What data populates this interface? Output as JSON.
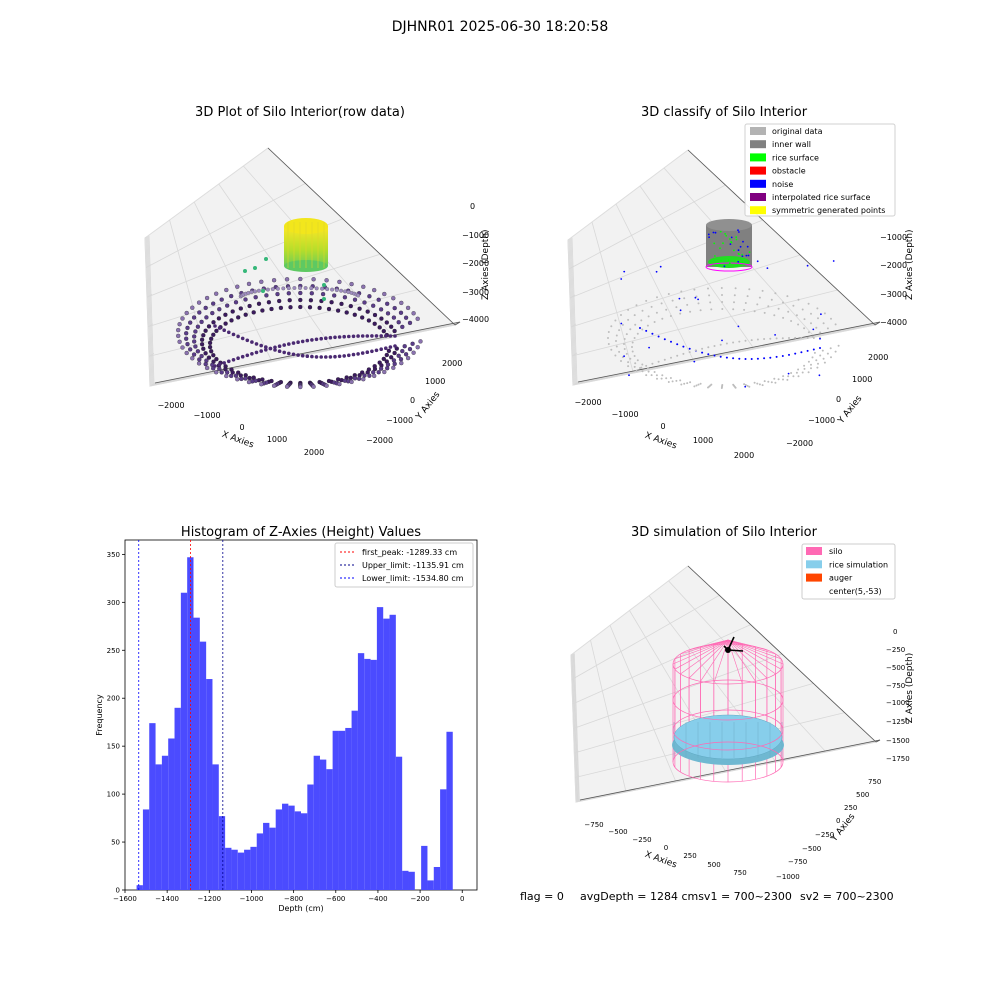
{
  "figure": {
    "suptitle": "DJHNR01 2025-06-30 18:20:58",
    "footer": {
      "flag": "flag = 0",
      "avg": "avgDepth = 1284 cmsv1 = 700~2300",
      "sv2": "sv2 = 700~2300"
    }
  },
  "chart_data": [
    {
      "type": "scatter3d",
      "title": "3D Plot of Silo Interior(row data)",
      "xlabel": "X Axies",
      "ylabel": "Y Axies",
      "zlabel": "Z Axies (Depth)",
      "x_ticks": [
        "−2000",
        "−1000",
        "0",
        "1000",
        "2000"
      ],
      "y_ticks": [
        "2000",
        "1000",
        "0",
        "−1000",
        "−2000"
      ],
      "z_ticks": [
        "0",
        "−1000",
        "−2000",
        "−3000",
        "−4000"
      ],
      "colormap": "viridis",
      "description_points": [
        {
          "group": "rice surface cylinder",
          "x_range": [
            -600,
            600
          ],
          "z_range": [
            -1800,
            -1000
          ],
          "color": "#b5de2b"
        },
        {
          "group": "scattered floor arcs",
          "x_range": [
            -2000,
            2000
          ],
          "z_range": [
            -4200,
            -3800
          ],
          "color": "#482878"
        }
      ]
    },
    {
      "type": "scatter3d",
      "title": "3D classify of Silo Interior",
      "xlabel": "X Axies",
      "ylabel": "Y Axies",
      "zlabel": "Z Axies (Depth)",
      "x_ticks": [
        "−2000",
        "−1000",
        "0",
        "1000",
        "2000"
      ],
      "y_ticks": [
        "2000",
        "1000",
        "0",
        "−1000",
        "−2000"
      ],
      "z_ticks": [
        "−1000",
        "−2000",
        "−3000",
        "−4000"
      ],
      "legend": [
        {
          "label": "original data",
          "color": "#b3b3b3"
        },
        {
          "label": "inner wall",
          "color": "#808080"
        },
        {
          "label": "rice surface",
          "color": "#00ff00"
        },
        {
          "label": "obstacle",
          "color": "#ff0000"
        },
        {
          "label": "noise",
          "color": "#0000ff"
        },
        {
          "label": "interpolated rice surface",
          "color": "#800080"
        },
        {
          "label": "symmetric generated points",
          "color": "#ffff00"
        }
      ]
    },
    {
      "type": "bar",
      "title": "Histogram of Z-Axies (Height) Values",
      "xlabel": "Depth (cm)",
      "ylabel": "Frequency",
      "xlim": [
        -1600,
        70
      ],
      "ylim": [
        0,
        365
      ],
      "x_ticks": [
        -1600,
        -1400,
        -1200,
        -1000,
        -800,
        -600,
        -400,
        -200,
        0
      ],
      "y_ticks": [
        0,
        50,
        100,
        150,
        200,
        250,
        300,
        350
      ],
      "bin_start": -1545,
      "bin_width": 30,
      "values": [
        5,
        84,
        174,
        131,
        140,
        158,
        190,
        310,
        347,
        284,
        259,
        220,
        131,
        77,
        44,
        42,
        39,
        42,
        45,
        59,
        70,
        65,
        84,
        90,
        88,
        82,
        80,
        110,
        140,
        136,
        126,
        166,
        166,
        169,
        187,
        247,
        241,
        240,
        295,
        283,
        287,
        139,
        20,
        19,
        0,
        46,
        10,
        24,
        105,
        165
      ],
      "bar_color": "#4b4bff",
      "vlines": [
        {
          "x": -1289.33,
          "color": "#ff0000",
          "label": "first_peak: -1289.33 cm"
        },
        {
          "x": -1135.91,
          "color": "#00008b",
          "label": "Upper_limit: -1135.91 cm"
        },
        {
          "x": -1534.8,
          "color": "#0000ff",
          "label": "Lower_limit: -1534.80 cm"
        }
      ],
      "legend_position": "top-right"
    },
    {
      "type": "surface3d",
      "title": "3D simulation of Silo Interior",
      "xlabel": "X Axies",
      "ylabel": "Y Axies",
      "zlabel": "Z Axies (Depth)",
      "x_ticks": [
        "−750",
        "−500",
        "−250",
        "0",
        "250",
        "500",
        "750"
      ],
      "y_ticks": [
        "750",
        "500",
        "250",
        "0",
        "−250",
        "−500",
        "−750",
        "−1000"
      ],
      "z_ticks": [
        "0",
        "−250",
        "−500",
        "−750",
        "−1000",
        "−1250",
        "−1500",
        "−1750"
      ],
      "legend": [
        {
          "label": "silo",
          "color": "#ff69b4"
        },
        {
          "label": "rice simulation",
          "color": "#87ceeb"
        },
        {
          "label": "auger",
          "color": "#ff4500"
        },
        {
          "label": "center(5,-53)",
          "color": "#ffffff"
        }
      ]
    }
  ]
}
